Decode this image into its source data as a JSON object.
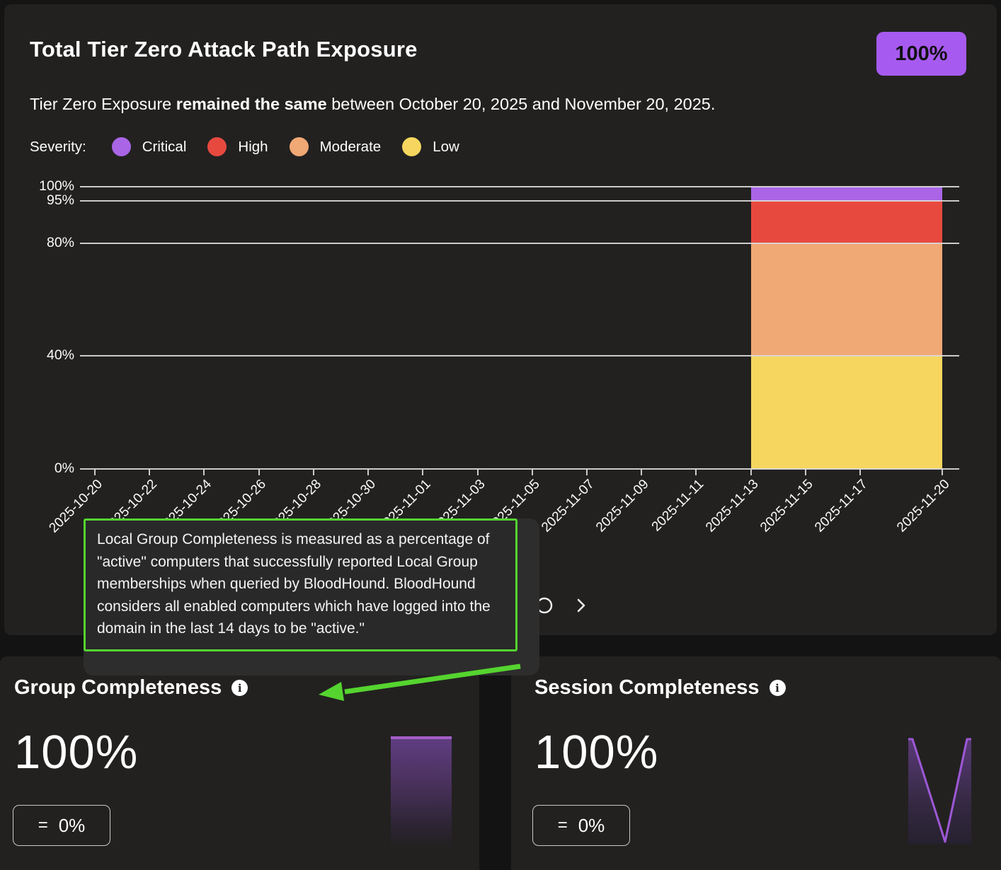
{
  "header": {
    "title": "Total Tier Zero Attack Path Exposure",
    "badge_value": "100%"
  },
  "subtitle": {
    "prefix": "Tier Zero Exposure ",
    "bold": "remained the same",
    "suffix": " between October 20, 2025 and November 20, 2025."
  },
  "legend": {
    "label": "Severity:",
    "items": [
      {
        "label": "Critical",
        "color": "#a965e6"
      },
      {
        "label": "High",
        "color": "#e8493f"
      },
      {
        "label": "Moderate",
        "color": "#f0a874"
      },
      {
        "label": "Low",
        "color": "#f6d65e"
      }
    ]
  },
  "chart_data": {
    "type": "area",
    "title": "Total Tier Zero Attack Path Exposure",
    "xlabel": "",
    "ylabel": "",
    "ylim": [
      0,
      100
    ],
    "grid": true,
    "legend_position": "top",
    "y_tick_values": [
      0,
      40,
      80,
      95,
      100
    ],
    "y_tick_labels": [
      "0%",
      "40%",
      "80%",
      "95%",
      "100%"
    ],
    "x_tick_labels": [
      "2025-10-20",
      "2025-10-22",
      "2025-10-24",
      "2025-10-26",
      "2025-10-28",
      "2025-10-30",
      "2025-11-01",
      "2025-11-03",
      "2025-11-05",
      "2025-11-07",
      "2025-11-09",
      "2025-11-11",
      "2025-11-13",
      "2025-11-15",
      "2025-11-17",
      "2025-11-20"
    ],
    "x_tick_day_offsets": [
      0,
      2,
      4,
      6,
      8,
      10,
      12,
      14,
      16,
      18,
      20,
      22,
      24,
      26,
      28,
      31
    ],
    "x_total_days": 31,
    "series": [
      {
        "name": "Critical",
        "color": "#a965e6",
        "band_low": 95,
        "band_high": 100
      },
      {
        "name": "High",
        "color": "#e8493f",
        "band_low": 80,
        "band_high": 95
      },
      {
        "name": "Moderate",
        "color": "#f0a874",
        "band_low": 40,
        "band_high": 80
      },
      {
        "name": "Low",
        "color": "#f6d65e",
        "band_low": 0,
        "band_high": 40
      }
    ],
    "data_window": {
      "start_label": "2025-11-13",
      "end_label": "2025-11-20",
      "start_day": 24,
      "end_day": 31,
      "stack_total_percent": 100
    }
  },
  "tooltip": {
    "text": "Local Group Completeness is measured as a percentage of \"active\" computers that successfully reported Local Group memberships when queried by BloodHound. BloodHound considers all enabled computers which have logged into the domain in the last 14 days to be \"active.\""
  },
  "carousel": {
    "dots_visible": 1,
    "next_icon": "chevron-right"
  },
  "cards": [
    {
      "title": "Group Completeness",
      "value": "100%",
      "delta_symbol": "=",
      "delta_value": "0%",
      "spark": {
        "type": "bar",
        "values": [
          100
        ],
        "color": "#a35fc9"
      }
    },
    {
      "title": "Session Completeness",
      "value": "100%",
      "delta_symbol": "=",
      "delta_value": "0%",
      "spark": {
        "type": "line",
        "values": [
          100,
          0,
          100
        ],
        "color": "#9d58d6"
      }
    }
  ],
  "colors": {
    "badge_bg": "#a75af0",
    "annotation_green": "#55d42f",
    "grid": "#dadada"
  }
}
